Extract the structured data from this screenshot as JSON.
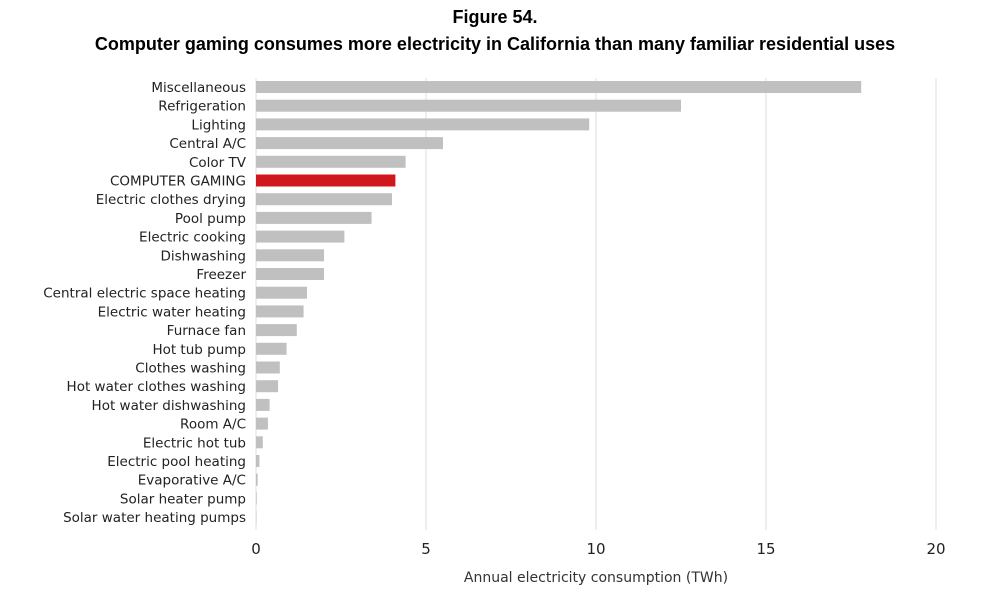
{
  "figure": {
    "number": "Figure 54.",
    "title": "Computer gaming consumes more electricity in California than many familiar residential uses"
  },
  "chart_data": {
    "type": "bar",
    "orientation": "horizontal",
    "categories": [
      "Miscellaneous",
      "Refrigeration",
      "Lighting",
      "Central A/C",
      "Color TV",
      "COMPUTER GAMING",
      "Electric clothes drying",
      "Pool pump",
      "Electric cooking",
      "Dishwashing",
      "Freezer",
      "Central electric space heating",
      "Electric water heating",
      "Furnace fan",
      "Hot tub pump",
      "Clothes washing",
      "Hot water clothes washing",
      "Hot water dishwashing",
      "Room A/C",
      "Electric hot tub",
      "Electric pool heating",
      "Evaporative A/C",
      "Solar heater pump",
      "Solar water heating pumps"
    ],
    "values": [
      17.8,
      12.5,
      9.8,
      5.5,
      4.4,
      4.1,
      4.0,
      3.4,
      2.6,
      2.0,
      2.0,
      1.5,
      1.4,
      1.2,
      0.9,
      0.7,
      0.65,
      0.4,
      0.35,
      0.2,
      0.1,
      0.05,
      0.02,
      0.01
    ],
    "highlight_category": "COMPUTER GAMING",
    "xlabel": "Annual electricity consumption (TWh)",
    "ylabel": "",
    "xlim": [
      0,
      20
    ],
    "xticks": [
      0,
      5,
      10,
      15,
      20
    ],
    "grid": "vertical",
    "colors": {
      "bar": "#c0c0c0",
      "highlight": "#d0181c",
      "grid": "#e2e2e2"
    }
  }
}
